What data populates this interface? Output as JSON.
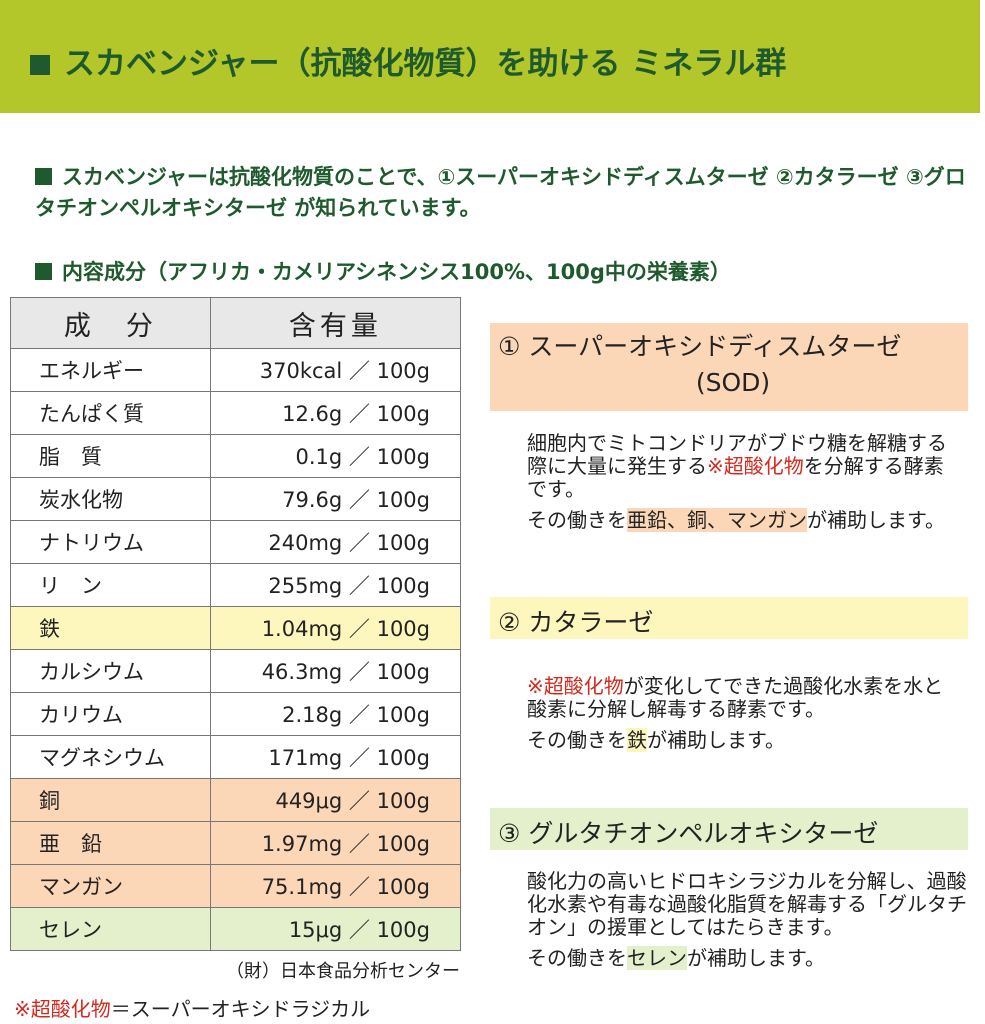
{
  "header": {
    "title": "スカベンジャー（抗酸化物質）を助ける ミネラル群"
  },
  "intro": {
    "text": "スカベンジャーは抗酸化物質のことで、①スーパーオキシドディスムターゼ ②カタラーゼ ③グロタチオンペルオキシターゼ が知られています。"
  },
  "table": {
    "caption": "内容成分（アフリカ・カメリアシネンシス100%、100g中の栄養素）",
    "headers": [
      "成　分",
      "含有量"
    ],
    "rows": [
      [
        "エネルギー",
        "370kcal ／ 100g"
      ],
      [
        "たんぱく質",
        "12.6g ／ 100g"
      ],
      [
        "脂　質",
        "0.1g ／ 100g"
      ],
      [
        "炭水化物",
        "79.6g ／ 100g"
      ],
      [
        "ナトリウム",
        "240mg ／ 100g"
      ],
      [
        "リ　ン",
        "255mg ／ 100g"
      ],
      [
        "鉄",
        "1.04mg ／ 100g"
      ],
      [
        "カルシウム",
        "46.3mg ／ 100g"
      ],
      [
        "カリウム",
        "2.18g ／ 100g"
      ],
      [
        "マグネシウム",
        "171mg ／ 100g"
      ],
      [
        "銅",
        "449μg ／ 100g"
      ],
      [
        "亜　鉛",
        "1.97mg ／ 100g"
      ],
      [
        "マンガン",
        "75.1mg ／ 100g"
      ],
      [
        "セレン",
        "15μg ／ 100g"
      ]
    ],
    "source": "（財）日本食品分析センター"
  },
  "enzymes": [
    {
      "title": "① スーパーオキシドディスムターゼ",
      "subtitle": "(SOD)",
      "paragraphs": [
        [
          "細胞内でミトコンドリアがブドウ糖を解糖する際に大量に発生する",
          "※超酸化物",
          "を分解する酵素です。"
        ],
        [
          "その働きを",
          "亜鉛、銅、マンガン",
          "が補助します。"
        ]
      ]
    },
    {
      "title": "② カタラーゼ",
      "paragraphs": [
        [
          "※超酸化物",
          "が変化してできた過酸化水素を水と酸素に分解し解毒する酵素です。"
        ],
        [
          "その働きを",
          "鉄",
          "が補助します。"
        ]
      ]
    },
    {
      "title": "③ グルタチオンペルオキシターゼ",
      "paragraphs": [
        [
          "酸化力の高いヒドロキシラジカルを分解し、過酸化水素や有毒な過酸化脂質を解毒する「グルタチオン」の援軍としてはたらきます。"
        ],
        [
          "その働きを",
          "セレン",
          "が補助します。"
        ]
      ]
    }
  ],
  "footnote": [
    "※超酸化物",
    "＝スーパーオキシドラジカル"
  ]
}
